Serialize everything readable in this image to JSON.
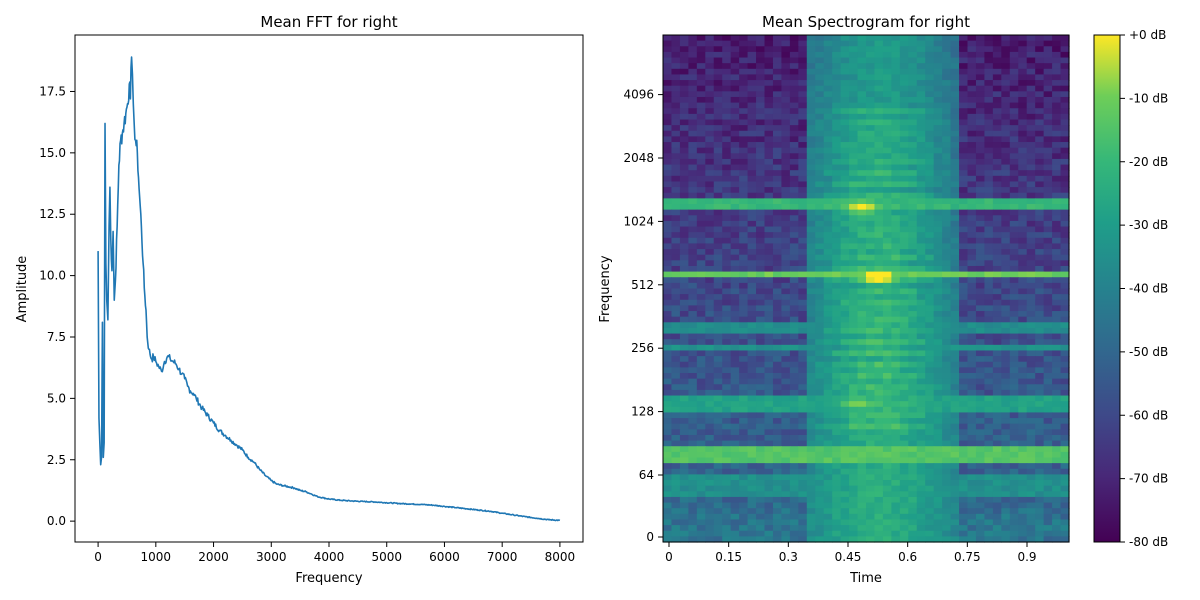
{
  "chart_data": [
    {
      "type": "line",
      "title": "Mean FFT for right",
      "xlabel": "Frequency",
      "ylabel": "Amplitude",
      "xlim": [
        -400,
        8400
      ],
      "ylim": [
        -0.85,
        19.8
      ],
      "xticks": [
        0,
        1000,
        2000,
        3000,
        4000,
        5000,
        6000,
        7000,
        8000
      ],
      "yticks": [
        0.0,
        2.5,
        5.0,
        7.5,
        10.0,
        12.5,
        15.0,
        17.5
      ],
      "xtick_labels": [
        "0",
        "1000",
        "2000",
        "3000",
        "4000",
        "5000",
        "6000",
        "7000",
        "8000"
      ],
      "ytick_labels": [
        "0.0",
        "2.5",
        "5.0",
        "7.5",
        "10.0",
        "12.5",
        "15.0",
        "17.5"
      ],
      "color": "#1f77b4",
      "series": [
        {
          "x": [
            0,
            15,
            30,
            45,
            60,
            75,
            90,
            105,
            120,
            135,
            150,
            170,
            190,
            205,
            220,
            240,
            260,
            280,
            300,
            330,
            360,
            390,
            420,
            450,
            480,
            510,
            540,
            560,
            580,
            595,
            610,
            625,
            650,
            680,
            700,
            720,
            750,
            780,
            800,
            830,
            850,
            880,
            900,
            930,
            960,
            1000,
            1050,
            1100,
            1150,
            1200,
            1250,
            1300,
            1350,
            1400,
            1450,
            1500,
            1550,
            1600,
            1650,
            1700,
            1800,
            1900,
            2000,
            2100,
            2200,
            2300,
            2400,
            2500,
            2600,
            2700,
            2800,
            2900,
            3000,
            3100,
            3200,
            3300,
            3400,
            3500,
            3600,
            3700,
            3800,
            3900,
            4000,
            4200,
            4400,
            4600,
            4800,
            5000,
            5200,
            5400,
            5600,
            5800,
            6000,
            6200,
            6400,
            6600,
            6800,
            7000,
            7200,
            7400,
            7600,
            7800,
            8000
          ],
          "y": [
            11.0,
            4.2,
            3.2,
            2.3,
            2.6,
            8.1,
            2.6,
            3.2,
            16.2,
            10.5,
            9.0,
            8.2,
            12.0,
            13.6,
            11.5,
            10.2,
            11.8,
            9.0,
            9.8,
            12.0,
            14.5,
            15.5,
            15.8,
            16.2,
            16.6,
            17.0,
            17.8,
            17.2,
            18.9,
            18.2,
            17.0,
            16.2,
            15.5,
            15.0,
            14.0,
            13.2,
            12.0,
            10.5,
            9.5,
            8.6,
            7.5,
            7.0,
            6.8,
            6.6,
            6.7,
            6.5,
            6.3,
            6.1,
            6.5,
            6.7,
            6.6,
            6.5,
            6.4,
            6.2,
            6.0,
            5.8,
            5.5,
            5.3,
            5.2,
            5.0,
            4.6,
            4.3,
            4.0,
            3.7,
            3.5,
            3.3,
            3.1,
            2.9,
            2.6,
            2.4,
            2.1,
            1.85,
            1.65,
            1.5,
            1.45,
            1.4,
            1.35,
            1.25,
            1.2,
            1.1,
            1.0,
            0.95,
            0.9,
            0.85,
            0.82,
            0.8,
            0.78,
            0.75,
            0.72,
            0.7,
            0.68,
            0.65,
            0.6,
            0.55,
            0.5,
            0.45,
            0.4,
            0.32,
            0.25,
            0.18,
            0.12,
            0.06,
            0.03
          ]
        }
      ]
    },
    {
      "type": "heatmap",
      "title": "Mean Spectrogram for right",
      "xlabel": "Time",
      "ylabel": "Frequency",
      "xlim": [
        0,
        1.0
      ],
      "xticks": [
        0,
        0.15,
        0.3,
        0.45,
        0.6,
        0.75,
        0.9
      ],
      "xtick_labels": [
        "0",
        "0.15",
        "0.3",
        "0.45",
        "0.6",
        "0.75",
        "0.9"
      ],
      "yscale": "symlog",
      "ylim": [
        0,
        8000
      ],
      "yticks": [
        0,
        64,
        128,
        256,
        512,
        1024,
        2048,
        4096
      ],
      "ytick_labels": [
        "0",
        "64",
        "128",
        "256",
        "512",
        "1024",
        "2048",
        "4096"
      ],
      "colorbar": {
        "label_suffix": " dB",
        "range": [
          -80,
          0
        ],
        "ticks": [
          0,
          -10,
          -20,
          -30,
          -40,
          -50,
          -60,
          -70,
          -80
        ],
        "tick_labels": [
          "+0 dB",
          "-10 dB",
          "-20 dB",
          "-30 dB",
          "-40 dB",
          "-50 dB",
          "-60 dB",
          "-70 dB",
          "-80 dB"
        ],
        "colormap": "viridis"
      },
      "speech_interval": [
        0.35,
        0.72
      ],
      "harmonic_bands_hz": [
        [
          75,
          85,
          -8
        ],
        [
          130,
          150,
          -22
        ],
        [
          250,
          270,
          -28
        ],
        [
          300,
          330,
          -30
        ],
        [
          560,
          600,
          -5
        ],
        [
          1150,
          1300,
          -14
        ]
      ],
      "formant_peaks": [
        {
          "t": 0.53,
          "f": 560,
          "db": -3
        },
        {
          "t": 0.49,
          "f": 1200,
          "db": -10
        },
        {
          "t": 0.48,
          "f": 140,
          "db": -18
        }
      ]
    }
  ]
}
